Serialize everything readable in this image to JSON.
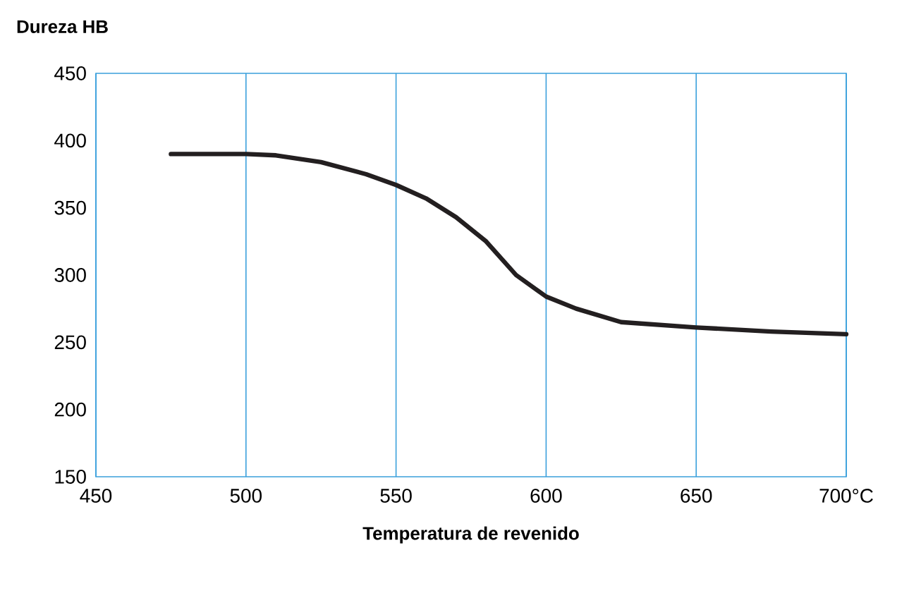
{
  "chart_data": {
    "type": "line",
    "xlabel": "Temperatura de revenido",
    "ylabel": "Dureza HB",
    "series": [
      {
        "color": "#231f20",
        "x": [
          475,
          500,
          510,
          525,
          540,
          550,
          560,
          570,
          580,
          590,
          600,
          610,
          625,
          650,
          675,
          700
        ],
        "values": [
          390,
          390,
          389,
          384,
          375,
          367,
          357,
          343,
          325,
          300,
          284,
          275,
          265,
          261,
          258,
          256
        ]
      }
    ],
    "xlim": [
      450,
      700
    ],
    "ylim": [
      150,
      450
    ],
    "xticks": [
      450,
      500,
      550,
      600,
      650,
      {
        "value": 700,
        "label": "700°C"
      }
    ],
    "yticks": [
      150,
      200,
      250,
      300,
      350,
      400,
      450
    ],
    "grid": "x",
    "line_style": "solid",
    "marker": "none"
  }
}
